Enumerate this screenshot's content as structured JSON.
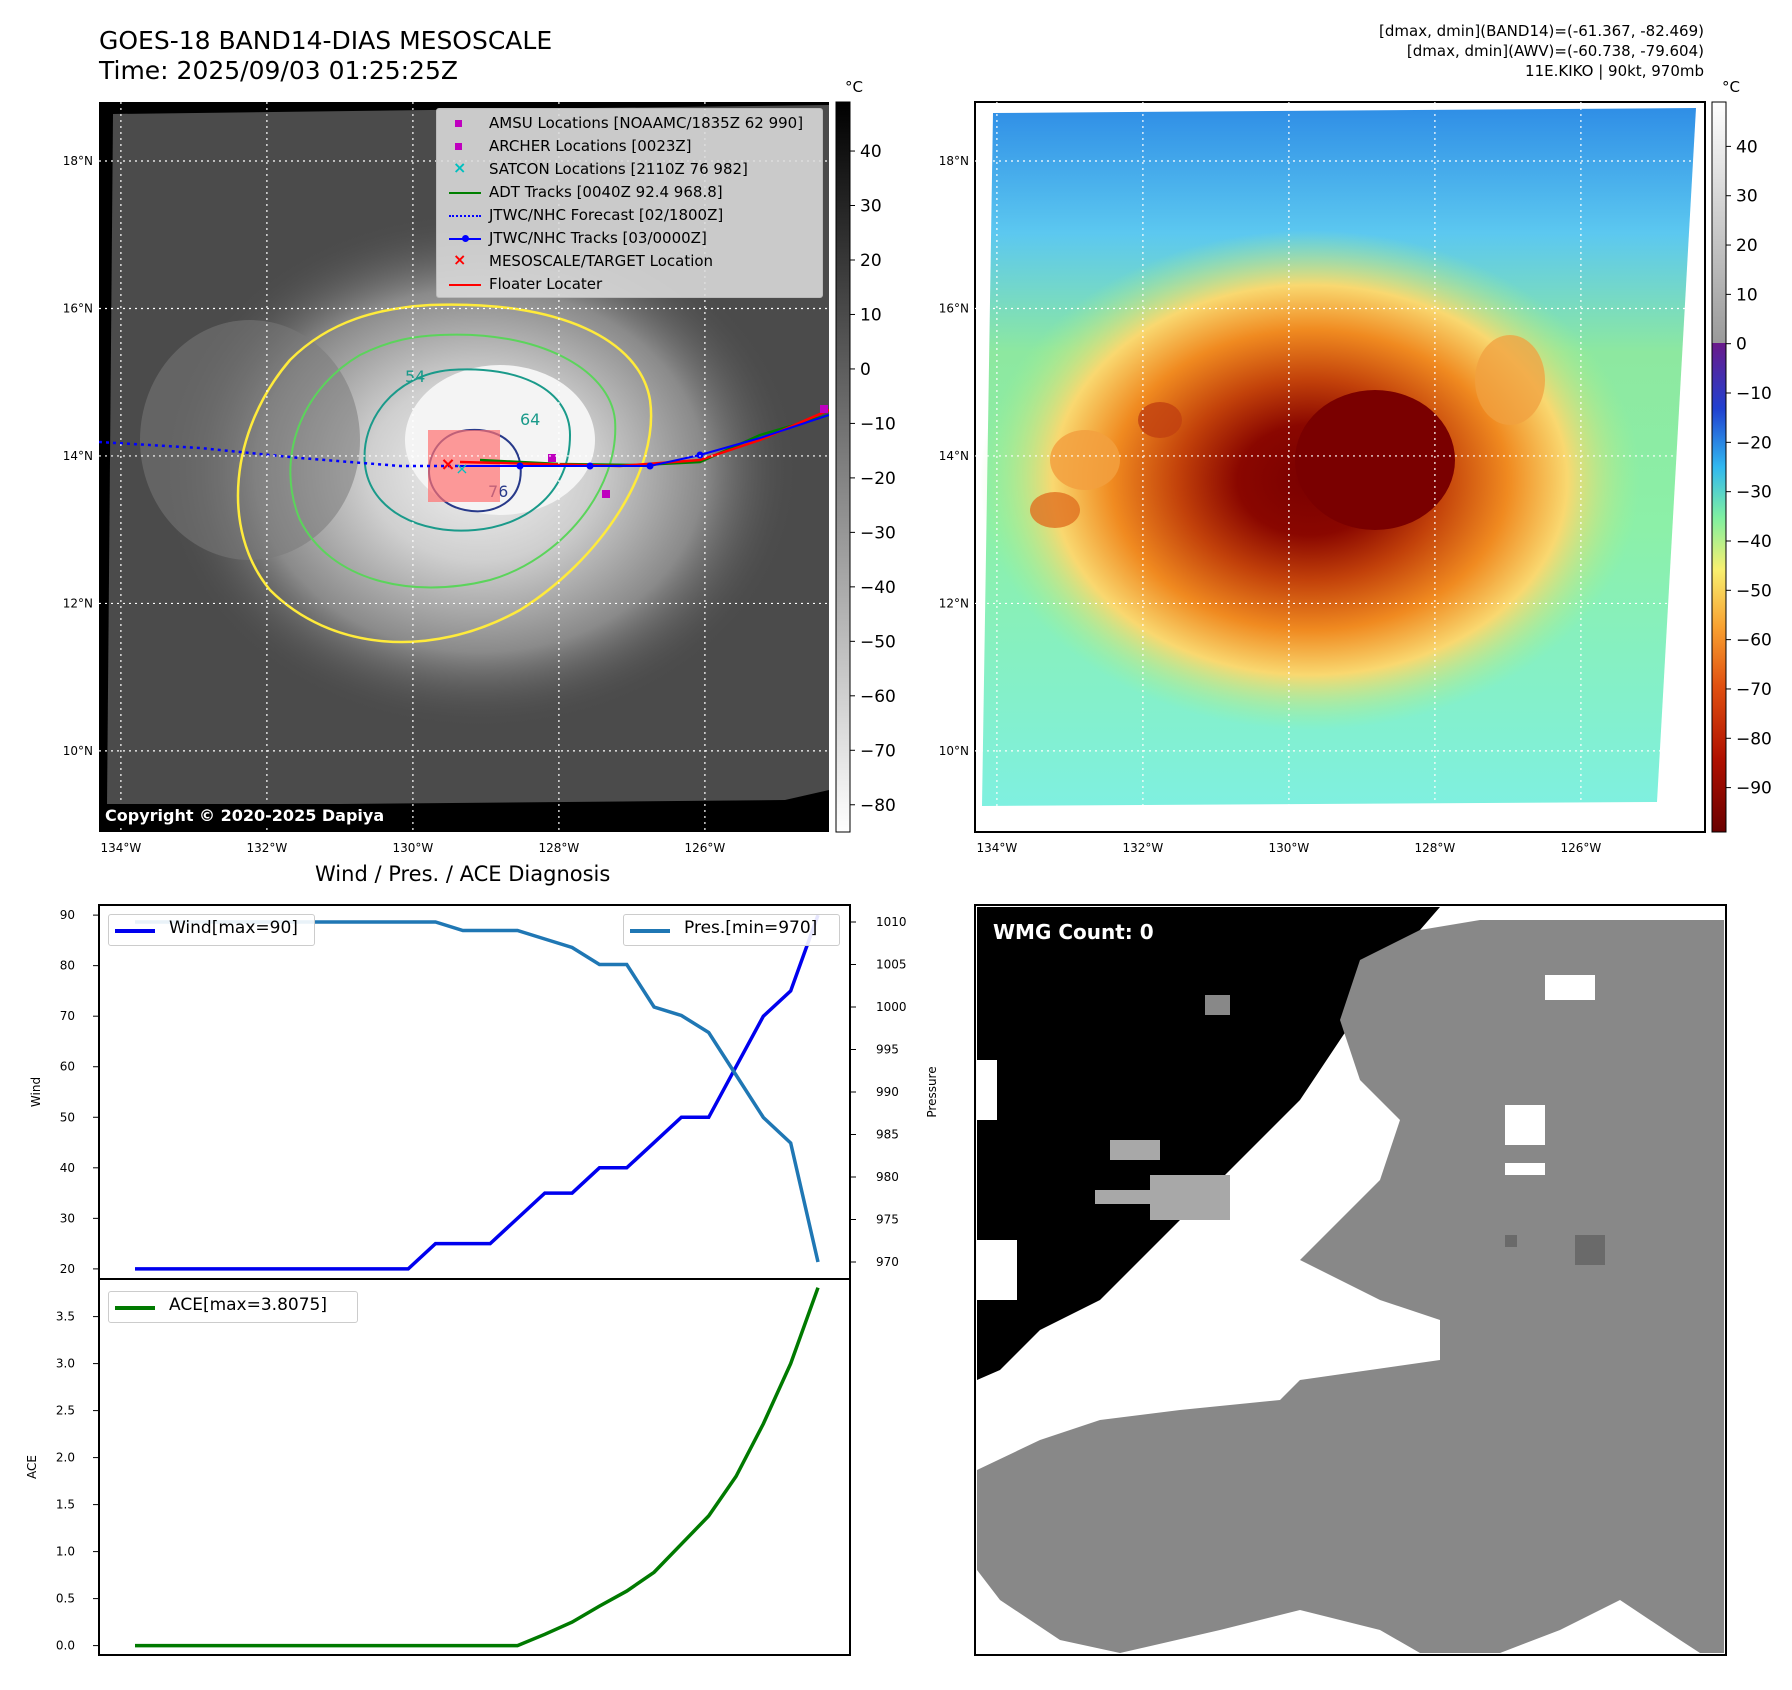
{
  "title_line1": "GOES-18 BAND14-DIAS MESOSCALE",
  "title_line2": "Time: 2025/09/03 01:25:25Z",
  "info_line1": "[dmax, dmin](BAND14)=(-61.367, -82.469)",
  "info_line2": "[dmax, dmin](AWV)=(-60.738, -79.604)",
  "info_line3": "11E.KIKO | 90kt, 970mb",
  "copyright": "Copyright © 2020-2025 Dapiya",
  "unit_label": "°C",
  "map": {
    "lon_labels": [
      "134°W",
      "132°W",
      "130°W",
      "128°W",
      "126°W"
    ],
    "lon_values": [
      -134,
      -132,
      -130,
      -128,
      -126
    ],
    "lat_labels": [
      "18°N",
      "16°N",
      "14°N",
      "12°N",
      "10°N"
    ],
    "lat_values": [
      18,
      16,
      14,
      12,
      10
    ],
    "lon_range": [
      -134.3,
      -124.3
    ],
    "lat_range": [
      8.9,
      18.8
    ]
  },
  "colorbar_gray": {
    "ticks": [
      40,
      30,
      20,
      10,
      0,
      -10,
      -20,
      -30,
      -40,
      -50,
      -60,
      -70,
      -80
    ],
    "range": [
      -85,
      49
    ]
  },
  "colorbar_color": {
    "ticks": [
      40,
      30,
      20,
      10,
      0,
      -10,
      -20,
      -30,
      -40,
      -50,
      -60,
      -70,
      -80,
      -90
    ],
    "range": [
      -99,
      49
    ]
  },
  "legend": [
    {
      "label": "AMSU Locations [NOAAMC/1835Z 62 990]",
      "marker": "square",
      "color": "#bf00bf"
    },
    {
      "label": "ARCHER Locations [0023Z]",
      "marker": "square",
      "color": "#bf00bf"
    },
    {
      "label": "SATCON Locations [2110Z 76 982]",
      "marker": "x",
      "color": "#00bfbf"
    },
    {
      "label": "ADT Tracks [0040Z 92.4 968.8]",
      "marker": "line",
      "color": "#008000"
    },
    {
      "label": "JTWC/NHC Forecast [02/1800Z]",
      "marker": "dotted",
      "color": "#0000ff"
    },
    {
      "label": "JTWC/NHC Tracks [03/0000Z]",
      "marker": "line-dot",
      "color": "#0000ff"
    },
    {
      "label": "MESOSCALE/TARGET Location",
      "marker": "x",
      "color": "#ff0000"
    },
    {
      "label": "Floater Locater",
      "marker": "line",
      "color": "#ff0000"
    }
  ],
  "contour_labels": [
    "54",
    "64",
    "76"
  ],
  "diagnosis_title": "Wind / Pres. / ACE Diagnosis",
  "wmg_count": "WMG Count: 0",
  "colors": {
    "wind": "#0000ee",
    "pressure": "#1f77b4",
    "ace": "#007a00"
  },
  "chart_data": [
    {
      "type": "line",
      "title": "Wind / Pres. / ACE Diagnosis",
      "ylabel": "Wind",
      "y2label": "Pressure",
      "ylim": [
        18,
        92
      ],
      "y2lim": [
        968,
        1012
      ],
      "yticks": [
        20,
        30,
        40,
        50,
        60,
        70,
        80,
        90
      ],
      "y2ticks": [
        970,
        975,
        980,
        985,
        990,
        995,
        1000,
        1005,
        1010
      ],
      "x": [
        0,
        1,
        2,
        3,
        4,
        5,
        6,
        7,
        8,
        9,
        10,
        11,
        12,
        13,
        14,
        15,
        16,
        17,
        18,
        19,
        20,
        21,
        22,
        23,
        24,
        25
      ],
      "series": [
        {
          "name": "Wind[max=90]",
          "axis": "left",
          "values": [
            20,
            20,
            20,
            20,
            20,
            20,
            20,
            20,
            20,
            20,
            20,
            25,
            25,
            25,
            30,
            35,
            35,
            40,
            40,
            45,
            50,
            50,
            60,
            70,
            75,
            90
          ]
        },
        {
          "name": "Pres.[min=970]",
          "axis": "right",
          "values": [
            1010,
            1010,
            1010,
            1010,
            1010,
            1010,
            1010,
            1010,
            1010,
            1010,
            1010,
            1010,
            1009,
            1009,
            1009,
            1008,
            1007,
            1005,
            1005,
            1000,
            999,
            997,
            992,
            987,
            984,
            970
          ]
        }
      ]
    },
    {
      "type": "line",
      "ylabel": "ACE",
      "ylim": [
        -0.1,
        3.9
      ],
      "yticks": [
        0.0,
        0.5,
        1.0,
        1.5,
        2.0,
        2.5,
        3.0,
        3.5
      ],
      "x": [
        0,
        1,
        2,
        3,
        4,
        5,
        6,
        7,
        8,
        9,
        10,
        11,
        12,
        13,
        14,
        15,
        16,
        17,
        18,
        19,
        20,
        21,
        22,
        23,
        24,
        25
      ],
      "series": [
        {
          "name": "ACE[max=3.8075]",
          "values": [
            0,
            0,
            0,
            0,
            0,
            0,
            0,
            0,
            0,
            0,
            0,
            0,
            0,
            0,
            0,
            0.12,
            0.25,
            0.42,
            0.58,
            0.78,
            1.08,
            1.38,
            1.8,
            2.36,
            3.0,
            3.8075
          ]
        }
      ]
    }
  ]
}
